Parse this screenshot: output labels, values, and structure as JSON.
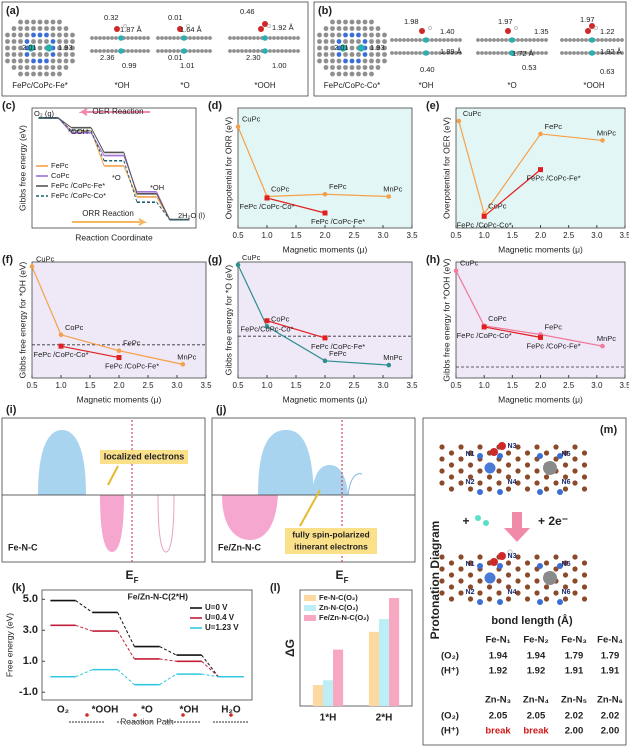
{
  "panel_a": {
    "label": "(a)",
    "caption": "FePc/CoPc-Fe*",
    "sites": [
      "*OH",
      "*O",
      "*OOH"
    ],
    "numbers": [
      "2.01",
      "1.93",
      "0.32",
      "1.87 Å",
      "2.36",
      "0.99",
      "0.01",
      "1.64 Å",
      "0.01",
      "1.01",
      "0.46",
      "1.92 Å",
      "2.30",
      "1.00"
    ]
  },
  "panel_b": {
    "label": "(b)",
    "caption": "FePc/CoPc-Co*",
    "sites": [
      "*OH",
      "*O",
      "*OOH"
    ],
    "numbers": [
      "2.01",
      "1.93",
      "1.98",
      "1.40",
      "1.89 Å",
      "0.40",
      "1.97",
      "1.35",
      "1.72 Å",
      "0.53",
      "1.97",
      "1.22",
      "1.92 Å",
      "0.63"
    ]
  },
  "chart_data": [
    {
      "type": "step",
      "panel": "(c)",
      "ylabel": "Gibbs free energy (eV)",
      "xlabel": "Reaction Coordinate",
      "ylim": [
        -0.4,
        5.4
      ],
      "connector": "solid",
      "legend": "center left",
      "annotations": [
        "O₂ (g)",
        "*OOH",
        "*O",
        "*OH",
        "2H₂O (l)",
        "OER Reaction",
        "ORR Reaction"
      ],
      "series": [
        {
          "name": "FePc",
          "color": "#f5a04a",
          "dash": false,
          "values": [
            4.92,
            4.3,
            2.6,
            1.1,
            0
          ]
        },
        {
          "name": "CoPc",
          "color": "#a46fd6",
          "dash": false,
          "values": [
            4.92,
            4.2,
            3.1,
            1.35,
            0
          ]
        },
        {
          "name": "FePc /CoPc-Fe*",
          "color": "#555555",
          "dash": false,
          "values": [
            4.92,
            4.45,
            3.25,
            1.25,
            0
          ]
        },
        {
          "name": "FePc /CoPc-Co*",
          "color": "#1f5f6e",
          "dash": true,
          "values": [
            4.92,
            4.3,
            2.85,
            0.85,
            0
          ]
        }
      ]
    },
    {
      "type": "scatter",
      "panel": "(d)",
      "ylabel": "Overpotential for ORR (eV)",
      "xlabel": "Magnetic moments (μ)",
      "background": "#e3f6f6",
      "xlim": [
        0.5,
        3.5
      ],
      "ylim": [
        0.3,
        1.9
      ],
      "xticks": [
        0.5,
        {
          "value": 1,
          "label": "1.0"
        },
        1.5,
        {
          "value": 2,
          "label": "2.0"
        },
        2.5,
        {
          "value": 3,
          "label": "3.0"
        },
        3.5
      ],
      "series": [
        {
          "color": "#f5a04a",
          "marker": "circle",
          "x": [
            0.5,
            1,
            2,
            3.1
          ],
          "values": [
            1.65,
            0.72,
            0.75,
            0.72
          ],
          "labels": [
            "CuPc",
            "CoPc",
            "FePc",
            "MnPc"
          ]
        },
        {
          "color": "#e02020",
          "marker": "square",
          "x": [
            1,
            2
          ],
          "values": [
            0.7,
            0.5
          ],
          "labels": [
            "FePc /CoPc-Co*",
            "FePc /CoPc-Fe*"
          ]
        }
      ]
    },
    {
      "type": "scatter",
      "panel": "(e)",
      "ylabel": "Overpotential for OER (eV)",
      "xlabel": "Magnetic moments (μ)",
      "background": "#e3f6f6",
      "xlim": [
        0.5,
        3.5
      ],
      "ylim": [
        0.1,
        1.95
      ],
      "xticks": [
        0.5,
        {
          "value": 1,
          "label": "1.0"
        },
        1.5,
        {
          "value": 2,
          "label": "2.0"
        },
        2.5,
        {
          "value": 3,
          "label": "3.0"
        },
        3.5
      ],
      "series": [
        {
          "color": "#f5a04a",
          "marker": "circle",
          "x": [
            0.55,
            1,
            2,
            3.1
          ],
          "values": [
            1.75,
            0.32,
            1.55,
            1.45
          ],
          "labels": [
            "CuPc",
            "CoPc",
            "FePc",
            "MnPc"
          ]
        },
        {
          "color": "#e02020",
          "marker": "square",
          "x": [
            1,
            2
          ],
          "values": [
            0.28,
            1.0
          ],
          "labels": [
            "FePc /CoPc-Co*",
            "FePc /CoPc-Fe*"
          ]
        }
      ]
    },
    {
      "type": "scatter",
      "panel": "(f)",
      "ylabel": "Gibbs free energy for *OH (eV)",
      "xlabel": "Magnetic moments (μ)",
      "background": "#efe8f7",
      "xlim": [
        0.5,
        3.5
      ],
      "ylim": [
        0.5,
        3.05
      ],
      "reference_line": 1.23,
      "xticks": [
        0.5,
        {
          "value": 1,
          "label": "1.0"
        },
        1.5,
        {
          "value": 2,
          "label": "2.0"
        },
        2.5,
        {
          "value": 3,
          "label": "3.0"
        },
        3.5
      ],
      "series": [
        {
          "color": "#f5a04a",
          "marker": "circle",
          "x": [
            0.5,
            1,
            2,
            3.1
          ],
          "values": [
            2.95,
            1.45,
            1.1,
            0.8
          ],
          "labels": [
            "CuPc",
            "CoPc",
            "FePc",
            "MnPc"
          ]
        },
        {
          "color": "#e02020",
          "marker": "square",
          "x": [
            1,
            2
          ],
          "values": [
            1.2,
            0.95
          ],
          "labels": [
            "FePc /CoPc-Co*",
            "FePc /CoPc-Fe*"
          ]
        }
      ]
    },
    {
      "type": "scatter",
      "panel": "(g)",
      "ylabel": "Gibbs free energy for *O (eV)",
      "xlabel": "Magnetic moments (μ)",
      "background": "#efe8f7",
      "xlim": [
        0.5,
        3.5
      ],
      "ylim": [
        1.0,
        5.05
      ],
      "reference_line": 2.46,
      "xticks": [
        0.5,
        {
          "value": 1,
          "label": "1.0"
        },
        1.5,
        {
          "value": 2,
          "label": "2.0"
        },
        2.5,
        {
          "value": 3,
          "label": "3.0"
        },
        3.5
      ],
      "series": [
        {
          "color": "#2f8f8f",
          "marker": "circle",
          "x": [
            0.5,
            1,
            2,
            3.1
          ],
          "values": [
            4.95,
            2.8,
            1.6,
            1.45
          ],
          "labels": [
            "CuPc",
            "CoPc",
            "FePc",
            "MnPc"
          ]
        },
        {
          "color": "#e02020",
          "marker": "square",
          "x": [
            1,
            2
          ],
          "values": [
            3.0,
            2.4
          ],
          "labels": [
            "FePc/CoPc-Co*",
            "FePc /CoPc-Fe*"
          ]
        }
      ]
    },
    {
      "type": "scatter",
      "panel": "(h)",
      "ylabel": "Gibbs free energy for *OOH (eV)",
      "xlabel": "Magnetic moments (μ)",
      "background": "#efe8f7",
      "xlim": [
        0.5,
        3.5
      ],
      "ylim": [
        3.5,
        5.5
      ],
      "reference_line": 3.69,
      "xticks": [
        0.5,
        {
          "value": 1,
          "label": "1.0"
        },
        1.5,
        {
          "value": 2,
          "label": "2.0"
        },
        2.5,
        {
          "value": 3,
          "label": "3.0"
        },
        3.5
      ],
      "series": [
        {
          "color": "#f07a9a",
          "marker": "circle",
          "x": [
            0.5,
            1,
            2,
            3.1
          ],
          "values": [
            5.35,
            4.4,
            4.25,
            4.05
          ],
          "labels": [
            "CuPc",
            "CoPc",
            "FePc",
            "MnPc"
          ]
        },
        {
          "color": "#e02020",
          "marker": "square",
          "x": [
            1,
            2
          ],
          "values": [
            4.38,
            4.2
          ],
          "labels": [
            "FePc /CoPc-Co*",
            "FePc /CoPc-Fe*"
          ]
        }
      ]
    },
    {
      "type": "step",
      "panel": "(k)",
      "ylabel": "Free energy (eV)",
      "xlabel": "Reaction Path",
      "ylim": [
        -1.5,
        5.6
      ],
      "yticks": [
        {
          "value": -1,
          "label": "-1.0"
        },
        {
          "value": 1,
          "label": "1.0"
        },
        {
          "value": 3,
          "label": "3.0"
        },
        {
          "value": 5,
          "label": "5.0"
        }
      ],
      "categories": [
        "O₂",
        "*OOH",
        "*O",
        "*OH",
        "H₂O"
      ],
      "connector": "dashed",
      "legend": "upper right",
      "legend_title": "Fe/Zn-N-C(2*H)",
      "series": [
        {
          "name": "U=0 V",
          "color": "#111111",
          "dash": false,
          "values": [
            4.92,
            4.15,
            1.95,
            1.4,
            0
          ]
        },
        {
          "name": "U=0.4 V",
          "color": "#c0203a",
          "dash": false,
          "values": [
            3.32,
            2.95,
            1.15,
            1.0,
            0
          ]
        },
        {
          "name": "U=1.23 V",
          "color": "#30c8e0",
          "dash": false,
          "values": [
            0,
            0.46,
            -0.51,
            0.17,
            0
          ]
        }
      ]
    },
    {
      "type": "bar",
      "panel": "(l)",
      "ylabel": "ΔG",
      "ylim": [
        0,
        7.2
      ],
      "categories": [
        "1*H",
        "2*H"
      ],
      "legend": "upper left",
      "series": [
        {
          "name": "Fe-N-C(O₂)",
          "color": "#fcd9a0",
          "values": [
            1.3,
            4.6
          ]
        },
        {
          "name": "Zn-N-C(O₂)",
          "color": "#bdeef5",
          "values": [
            1.6,
            5.4
          ]
        },
        {
          "name": "Fe/Zn-N-C(O₂)",
          "color": "#f7a8c0",
          "values": [
            3.5,
            6.7
          ]
        }
      ]
    }
  ],
  "panel_i": {
    "label": "(i)",
    "box": "localized electrons",
    "material": "Fe-N-C",
    "fermi": "E",
    "fermi_sub": "F"
  },
  "panel_j": {
    "label": "(j)",
    "box_lines": [
      "fully spin-polarized",
      "itinerant electrons"
    ],
    "material": "Fe/Zn-N-C",
    "fermi": "E",
    "fermi_sub": "F"
  },
  "panel_m": {
    "label": "(m)",
    "title": "Protonation Diagram",
    "atom_labels": [
      "N1",
      "N3",
      "N5",
      "N2",
      "N4",
      "N6"
    ],
    "plus": "+",
    "electrons": "+ 2e⁻",
    "bond_title": "bond length (Å)",
    "fe_header": [
      "Fe-N₁",
      "Fe-N₂",
      "Fe-N₃",
      "Fe-N₄"
    ],
    "fe_rows": [
      [
        "(O₂)",
        "1.94",
        "1.94",
        "1.79",
        "1.79"
      ],
      [
        "(H⁺)",
        "1.92",
        "1.92",
        "1.91",
        "1.91"
      ]
    ],
    "zn_header": [
      "Zn-N₃",
      "Zn-N₄",
      "Zn-N₅",
      "Zn-N₆"
    ],
    "zn_rows": [
      [
        "(O₂)",
        "2.05",
        "2.05",
        "2.02",
        "2.02"
      ],
      [
        "(H⁺)",
        "break",
        "break",
        "2.00",
        "2.00"
      ]
    ]
  }
}
